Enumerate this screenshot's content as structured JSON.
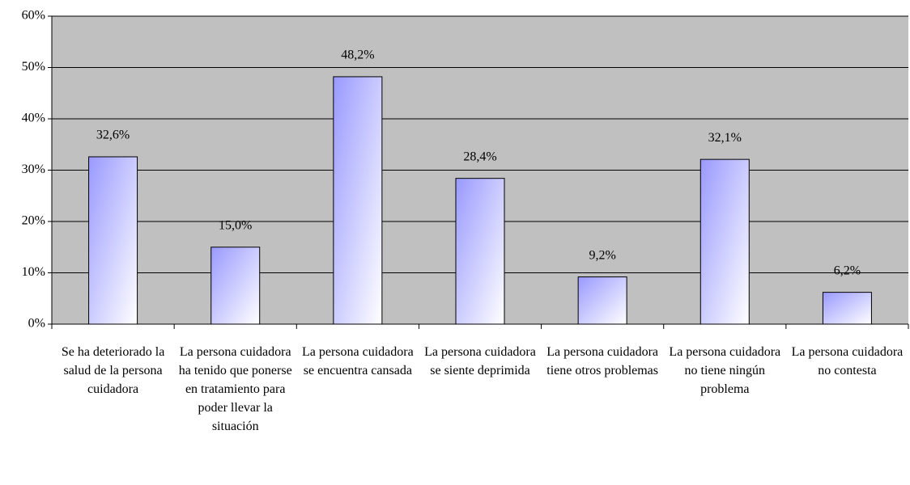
{
  "chart_data": {
    "type": "bar",
    "categories": [
      "Se ha deteriorado la salud de la persona cuidadora",
      "La persona cuidadora ha tenido que ponerse en tratamiento para poder llevar la situación",
      "La persona cuidadora se encuentra cansada",
      "La persona cuidadora se siente deprimida",
      "La persona cuidadora tiene otros problemas",
      "La persona cuidadora no tiene ningún problema",
      "La persona cuidadora no contesta"
    ],
    "values": [
      32.6,
      15.0,
      48.2,
      28.4,
      9.2,
      32.1,
      6.2
    ],
    "value_labels": [
      "32,6%",
      "15,0%",
      "48,2%",
      "28,4%",
      "9,2%",
      "32,1%",
      "6,2%"
    ],
    "color": "#9999ff",
    "ylim": [
      0,
      60
    ],
    "yticks": [
      {
        "value": 0,
        "label": "0%"
      },
      {
        "value": 10,
        "label": "10%"
      },
      {
        "value": 20,
        "label": "20%"
      },
      {
        "value": 30,
        "label": "30%"
      },
      {
        "value": 40,
        "label": "40%"
      },
      {
        "value": 50,
        "label": "50%"
      },
      {
        "value": 60,
        "label": "60%"
      }
    ],
    "grid": true
  }
}
